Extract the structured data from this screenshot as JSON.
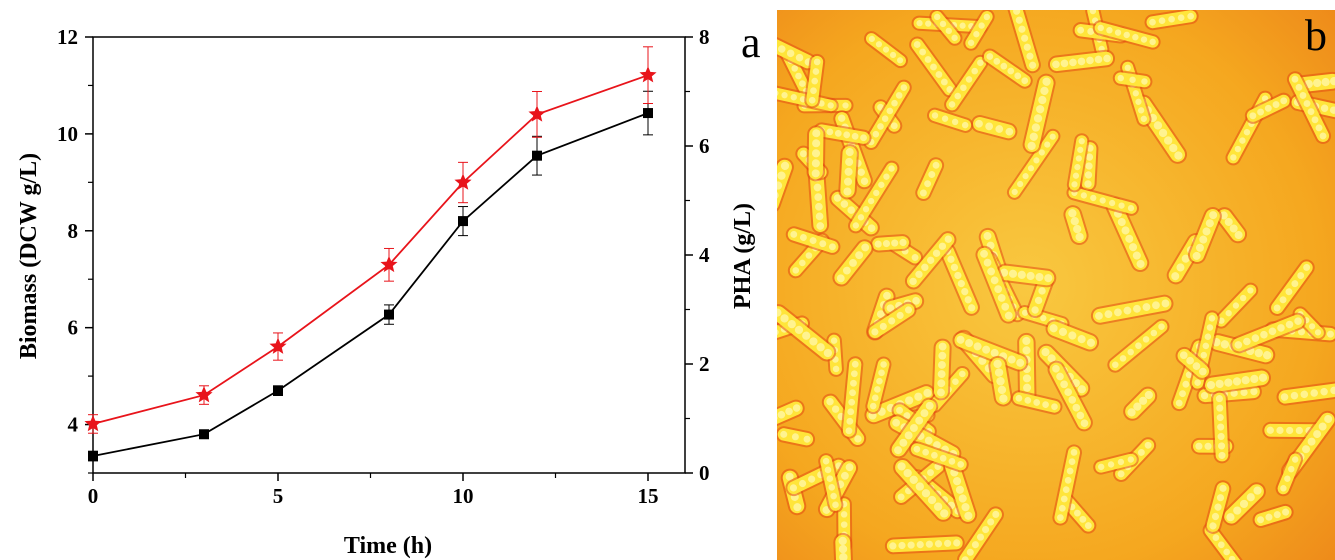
{
  "chart_data": {
    "type": "line",
    "panel_label": "a",
    "xlabel": "Time (h)",
    "ylabel_left": "Biomass (DCW g/L)",
    "ylabel_right": "PHA (g/L)",
    "xlim": [
      0,
      16
    ],
    "ylim_left": [
      3,
      12
    ],
    "ylim_right": [
      0,
      8
    ],
    "x_ticks": [
      "0",
      "5",
      "10",
      "15"
    ],
    "y_left_ticks": [
      "4",
      "6",
      "8",
      "10",
      "12"
    ],
    "y_right_ticks": [
      "0",
      "2",
      "4",
      "6",
      "8"
    ],
    "grid": false,
    "series": [
      {
        "axis": "left",
        "color": "#000000",
        "marker": "square",
        "x": [
          0,
          3,
          5,
          8,
          10,
          12,
          15
        ],
        "y": [
          3.35,
          3.8,
          4.7,
          6.27,
          8.2,
          9.55,
          10.43
        ],
        "err": [
          0.1,
          0.08,
          0.1,
          0.2,
          0.3,
          0.4,
          0.45
        ]
      },
      {
        "axis": "right",
        "color": "#e8141b",
        "marker": "star",
        "x": [
          0,
          3,
          5,
          8,
          10,
          12,
          15
        ],
        "y": [
          0.9,
          1.43,
          2.32,
          3.82,
          5.33,
          6.58,
          7.3
        ],
        "err": [
          0.17,
          0.17,
          0.25,
          0.3,
          0.37,
          0.42,
          0.52
        ]
      }
    ]
  },
  "micrograph": {
    "panel_label": "b",
    "background": "#f6b126",
    "cell_color": "#ffe53a",
    "cell_edge": "#e34a12"
  }
}
